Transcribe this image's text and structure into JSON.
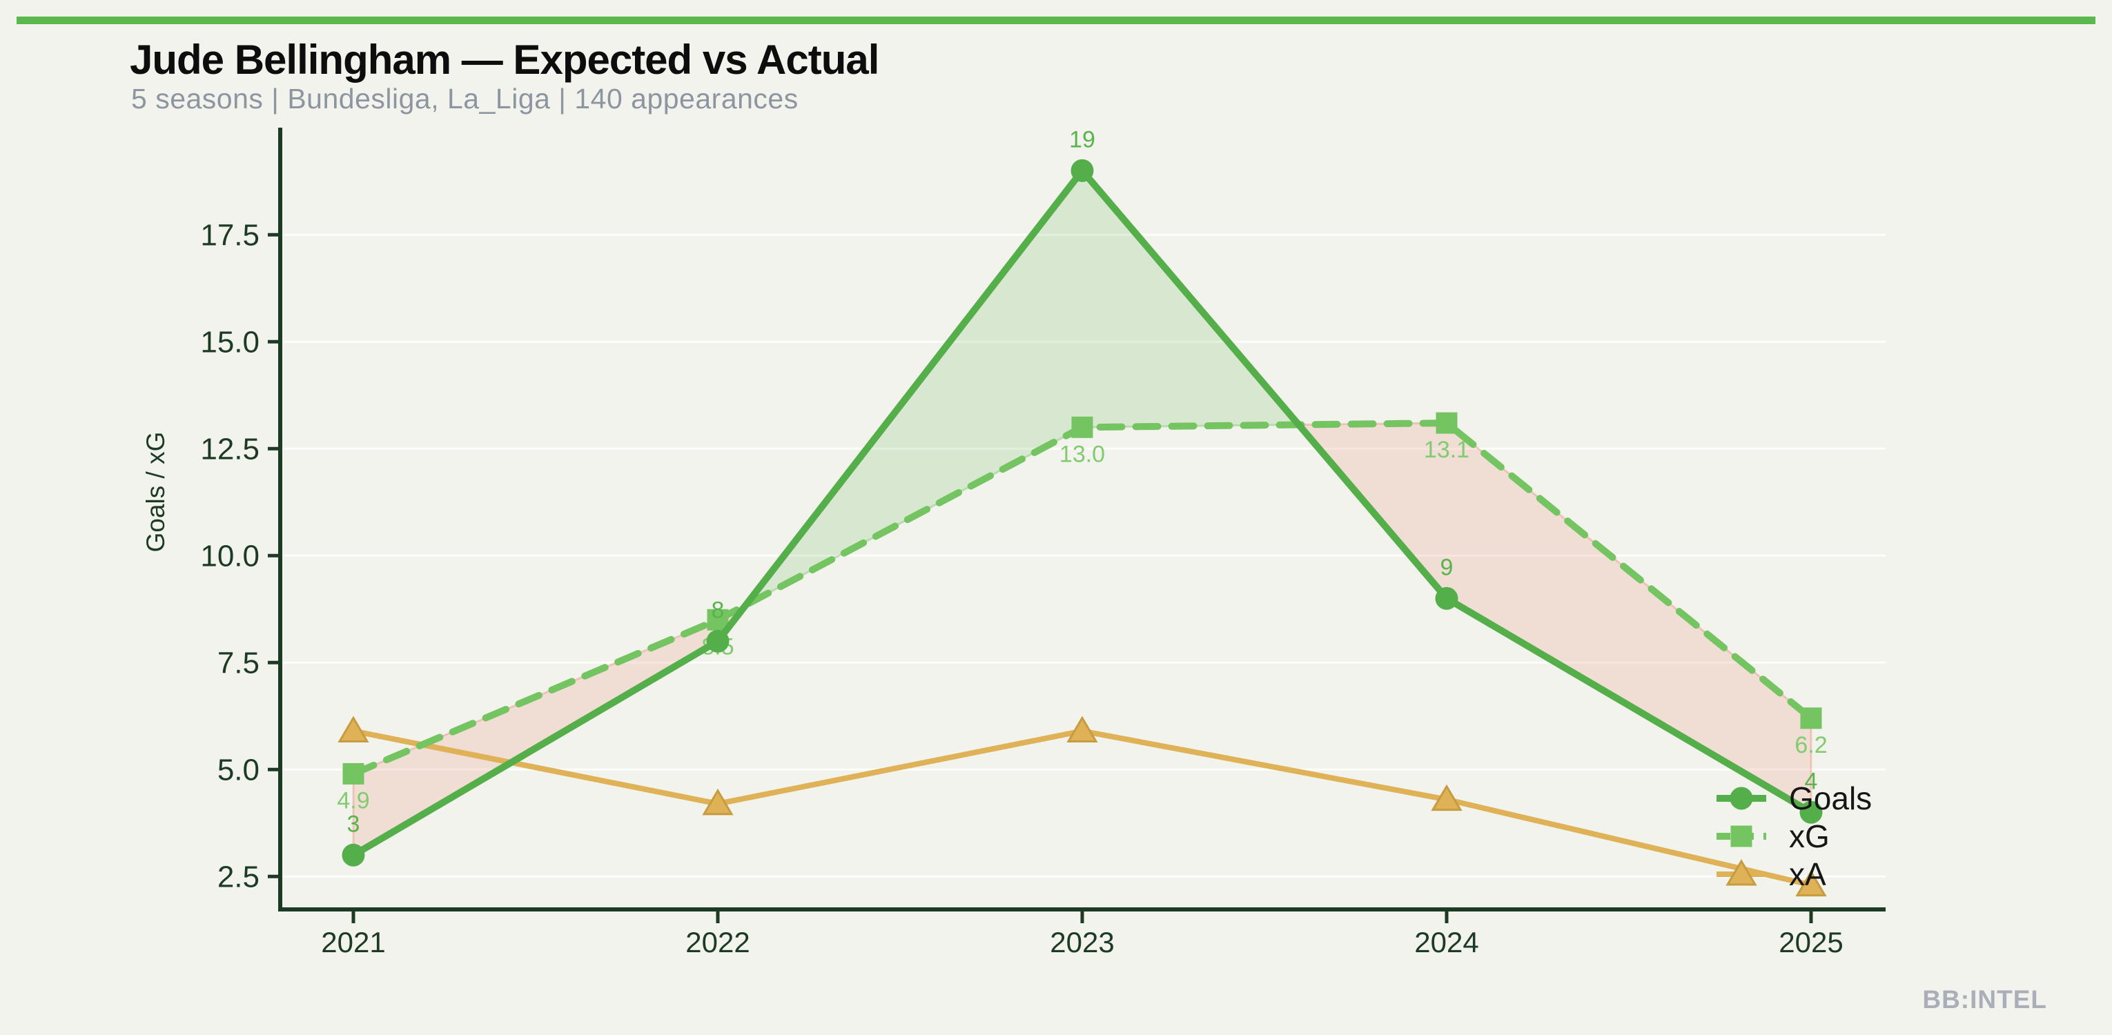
{
  "page": {
    "background": "#f2f3ec",
    "accent_bar_color": "#5bb84c"
  },
  "header": {
    "title": "Jude Bellingham — Expected vs Actual",
    "subtitle": "5 seasons | Bundesliga, La_Liga | 140 appearances"
  },
  "watermark": "BB:INTEL",
  "axis": {
    "color": "#1d3a25"
  },
  "chart_data": {
    "type": "line",
    "x": [
      2021,
      2022,
      2023,
      2024,
      2025
    ],
    "x_tick_labels": [
      "2021",
      "2022",
      "2023",
      "2024",
      "2025"
    ],
    "ylabel": "Goals / xG",
    "yticks": [
      2.5,
      5.0,
      7.5,
      10.0,
      12.5,
      15.0,
      17.5
    ],
    "ytick_labels": [
      "2.5",
      "5.0",
      "7.5",
      "10.0",
      "12.5",
      "15.0",
      "17.5"
    ],
    "ylim": [
      1.73,
      20.03
    ],
    "grid": "faint-horizontal-at-ticks",
    "legend_position": "lower-right-inside",
    "series": [
      {
        "name": "Goals",
        "marker": "circle",
        "line_style": "solid",
        "color": "#54ae4a",
        "label_color": "#59b44e",
        "values": [
          3,
          8,
          19,
          9,
          4
        ],
        "point_labels": [
          "3",
          "8",
          "19",
          "9",
          "4"
        ]
      },
      {
        "name": "xG",
        "marker": "square",
        "line_style": "dashed",
        "color": "#74c461",
        "label_color": "#82cb70",
        "values": [
          4.9,
          8.5,
          13.0,
          13.1,
          6.2
        ],
        "point_labels": [
          "4.9",
          "8.5",
          "13.0",
          "13.1",
          "6.2"
        ]
      },
      {
        "name": "xA",
        "marker": "triangle",
        "line_style": "solid",
        "color": "#dfb257",
        "marker_edge_color": "#c79b3f",
        "values": [
          5.9,
          4.2,
          5.9,
          4.3,
          2.3
        ],
        "point_labels": []
      }
    ],
    "fill_between": {
      "series_a": "Goals",
      "series_b": "xG",
      "above_color": "#5ab44a",
      "below_color": "#e8735f",
      "opacity": 0.17
    }
  }
}
